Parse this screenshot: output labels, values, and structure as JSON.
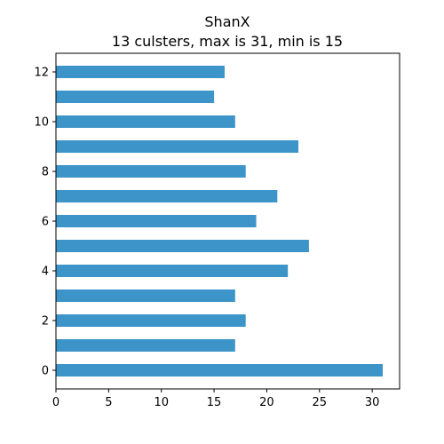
{
  "chart_data": {
    "type": "bar",
    "orientation": "horizontal",
    "title": "ShanX",
    "subtitle": "13 culsters, max is 31, min is 15",
    "xlabel": "",
    "ylabel": "",
    "categories": [
      0,
      1,
      2,
      3,
      4,
      5,
      6,
      7,
      8,
      9,
      10,
      11,
      12
    ],
    "values": [
      31,
      17,
      18,
      17,
      22,
      24,
      19,
      21,
      18,
      23,
      17,
      15,
      16
    ],
    "xlim": [
      0,
      32.6
    ],
    "ylim": [
      -0.75,
      12.75
    ],
    "x_ticks": [
      0,
      5,
      10,
      15,
      20,
      25,
      30
    ],
    "y_ticks": [
      0,
      2,
      4,
      6,
      8,
      10,
      12
    ],
    "bar_color": "#3d94c8",
    "grid": false,
    "legend": "none"
  }
}
